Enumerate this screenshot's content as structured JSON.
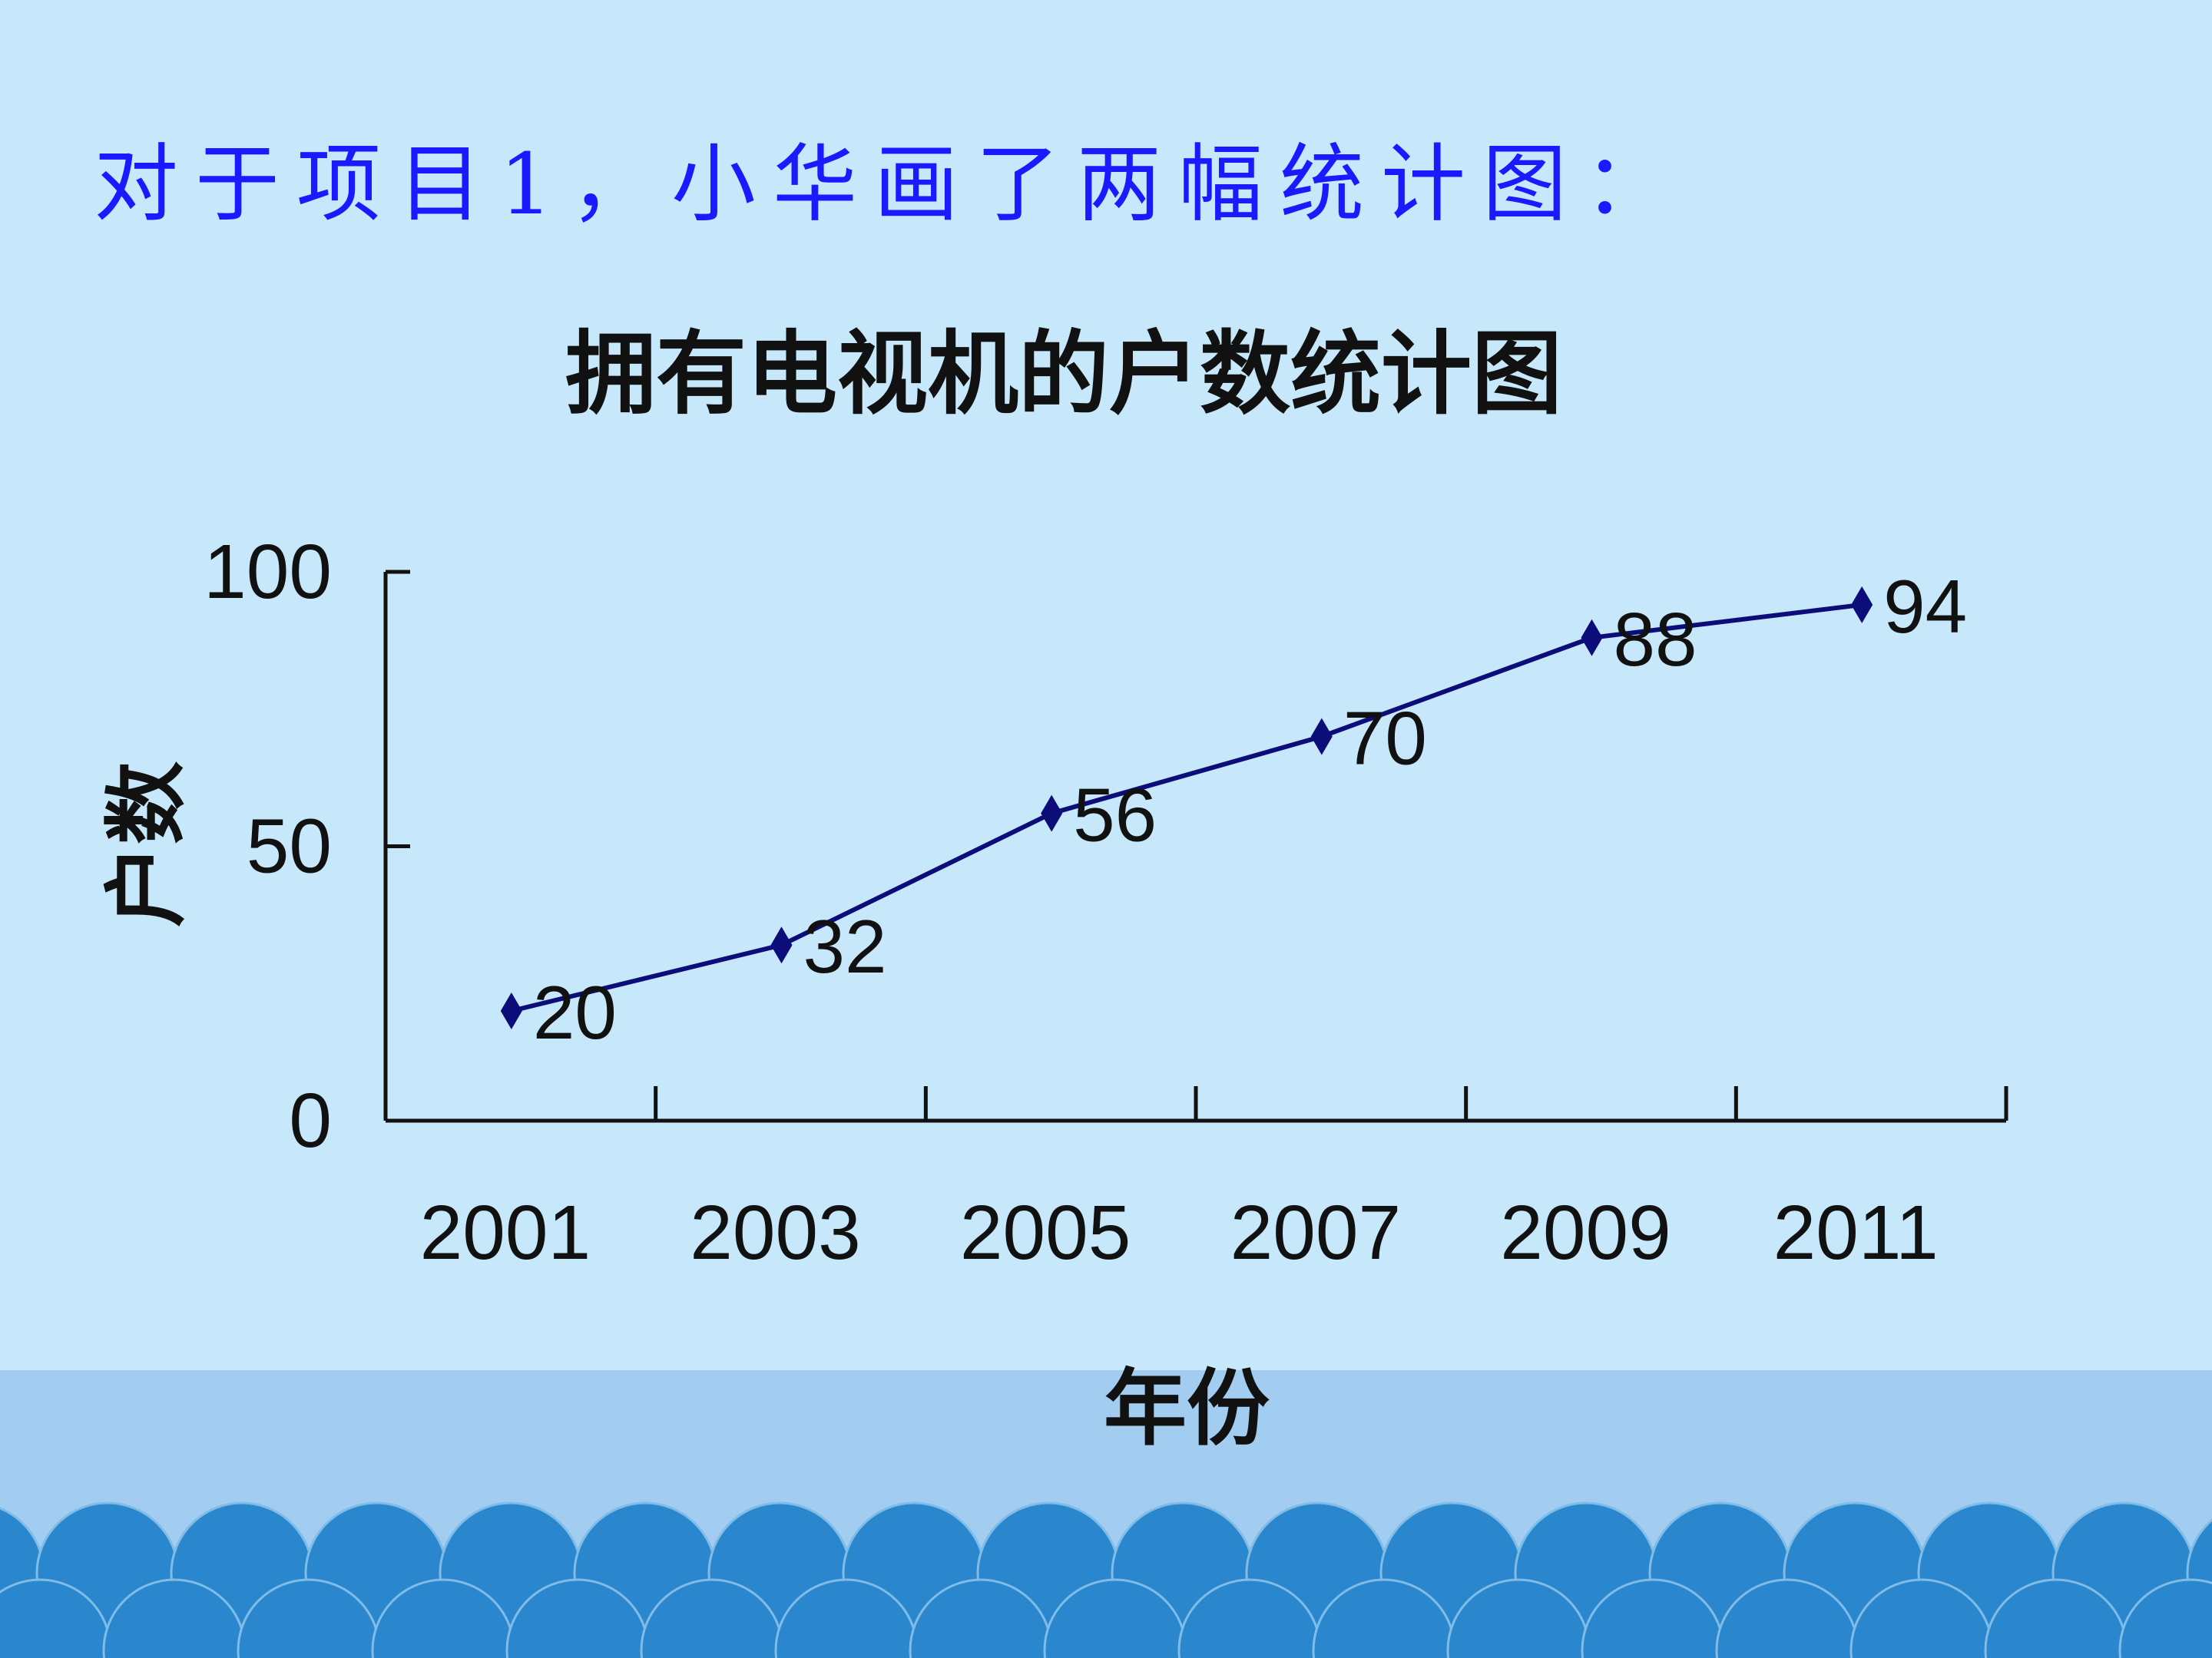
{
  "slide": {
    "heading": "对于项目1，小华画了两幅统计图："
  },
  "colors": {
    "background": "#c6e8fa",
    "heading_text": "#1a1aff",
    "series_line": "#0d0d7a",
    "footer_band": "#a3cdf0",
    "footer_wave": "#2a87cd"
  },
  "chart_data": {
    "type": "line",
    "title": "拥有电视机的户数统计图",
    "xlabel": "年份",
    "ylabel": "户数",
    "categories": [
      "2001",
      "2003",
      "2005",
      "2007",
      "2009",
      "2011"
    ],
    "values": [
      20,
      32,
      56,
      70,
      88,
      94
    ],
    "yticks": [
      "0",
      "50",
      "100"
    ],
    "ylim": [
      0,
      100
    ],
    "grid": false,
    "legend": "none",
    "data_labels": true
  }
}
